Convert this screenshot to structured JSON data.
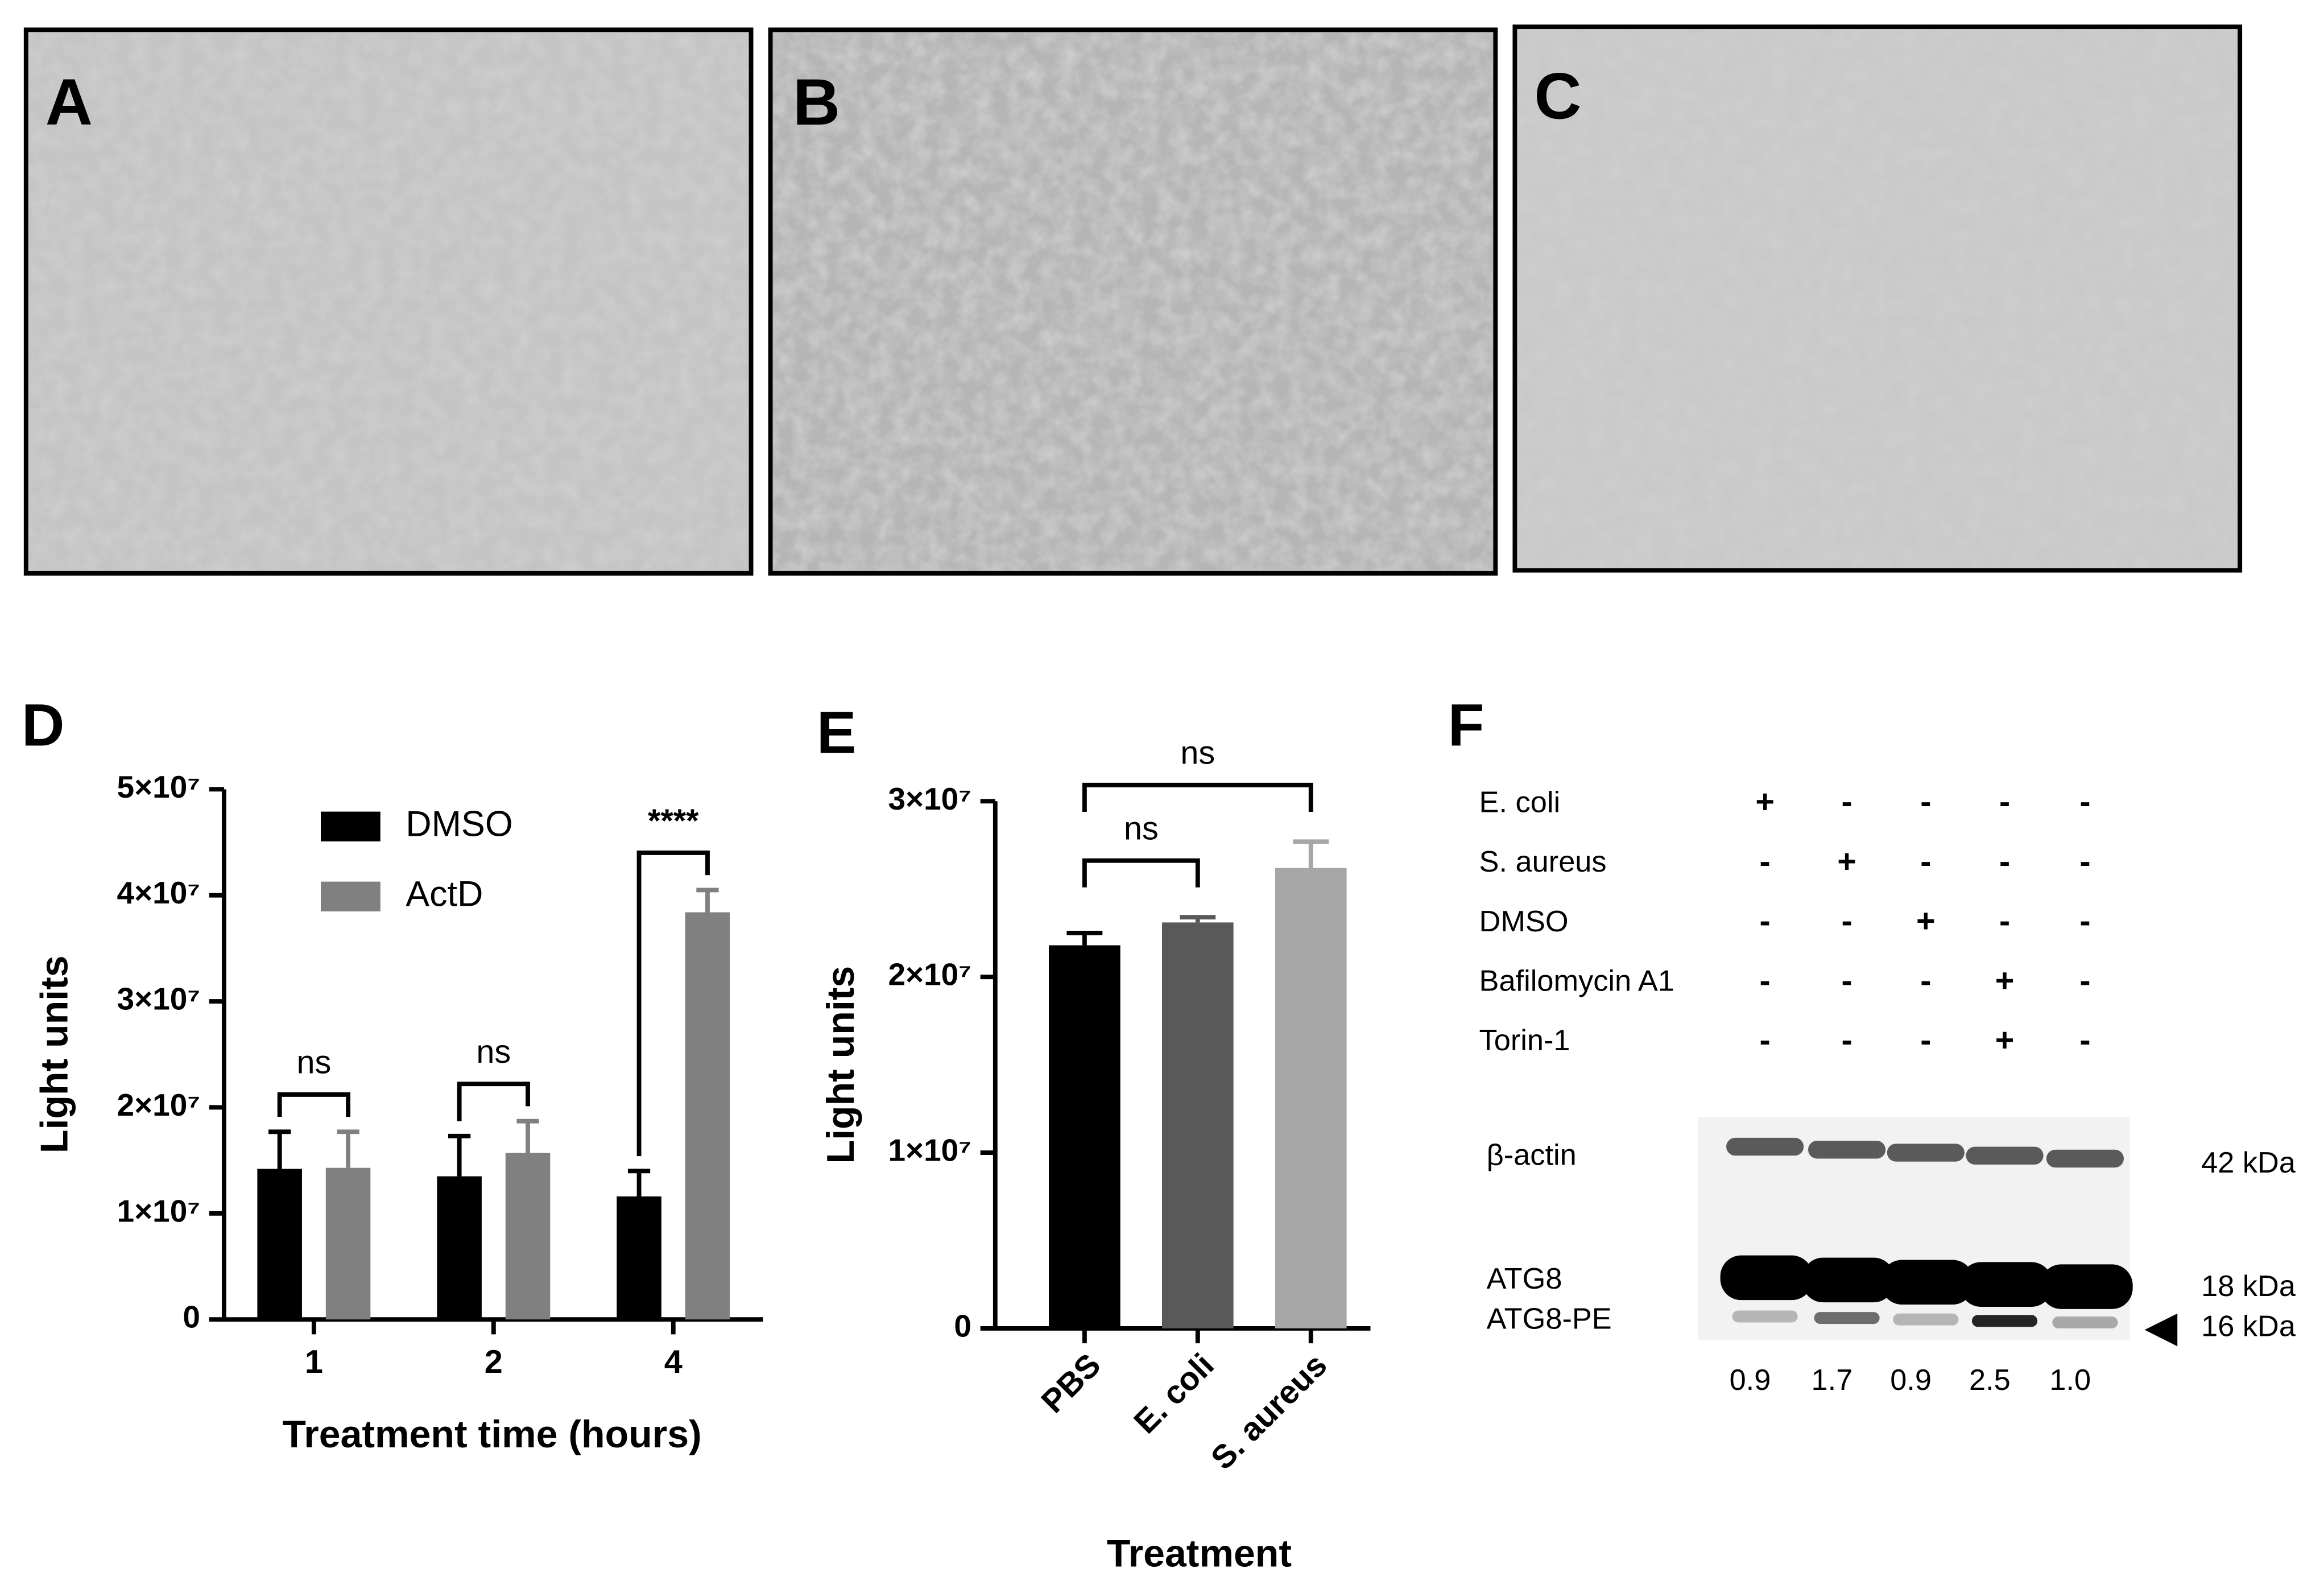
{
  "micrographs": [
    {
      "label": "A"
    },
    {
      "label": "B"
    },
    {
      "label": "C"
    }
  ],
  "chart_data": [
    {
      "type": "bar",
      "panel_label": "D",
      "y_label": "Light units",
      "x_label": "Treatment time (hours)",
      "categories": [
        "1",
        "2",
        "4"
      ],
      "series": [
        {
          "name": "DMSO",
          "color": "#000000",
          "values": [
            14200000,
            13500000,
            11600000
          ],
          "errors": [
            3500000,
            3800000,
            2400000
          ]
        },
        {
          "name": "ActD",
          "color": "#808080",
          "values": [
            14300000,
            15700000,
            38400000
          ],
          "errors": [
            3400000,
            3000000,
            2100000
          ]
        }
      ],
      "annotations": [
        "ns",
        "ns",
        "****"
      ],
      "ylim": [
        0,
        50000000
      ],
      "yticks": [
        0,
        {
          "value": 10000000,
          "label": "1×10⁷"
        },
        {
          "value": 20000000,
          "label": "2×10⁷"
        },
        {
          "value": 30000000,
          "label": "3×10⁷"
        },
        {
          "value": 40000000,
          "label": "4×10⁷"
        },
        {
          "value": 50000000,
          "label": "5×10⁷"
        }
      ]
    },
    {
      "type": "bar",
      "panel_label": "E",
      "y_label": "Light units",
      "x_label": "Treatment",
      "categories": [
        "PBS",
        "E. coli",
        "S. aureus"
      ],
      "values": [
        21800000,
        23100000,
        26200000
      ],
      "errors": [
        700000,
        300000,
        1500000
      ],
      "colors": [
        "#000000",
        "#595959",
        "#a6a6a6"
      ],
      "annotations": [
        "ns",
        "ns"
      ],
      "ylim": [
        0,
        30000000
      ],
      "yticks": [
        0,
        {
          "value": 10000000,
          "label": "1×10⁷"
        },
        {
          "value": 20000000,
          "label": "2×10⁷"
        },
        {
          "value": 30000000,
          "label": "3×10⁷"
        }
      ]
    }
  ],
  "blot": {
    "label": "F",
    "conditions": [
      {
        "name": "E. coli",
        "lanes": [
          "+",
          "-",
          "-",
          "-",
          "-"
        ]
      },
      {
        "name": "S. aureus",
        "lanes": [
          "-",
          "+",
          "-",
          "-",
          "-"
        ]
      },
      {
        "name": "DMSO",
        "lanes": [
          "-",
          "-",
          "+",
          "-",
          "-"
        ]
      },
      {
        "name": "Bafilomycin A1",
        "lanes": [
          "-",
          "-",
          "-",
          "+",
          "-"
        ]
      },
      {
        "name": "Torin-1",
        "lanes": [
          "-",
          "-",
          "-",
          "+",
          "-"
        ]
      }
    ],
    "bands": [
      {
        "name": "β-actin",
        "size": "42 kDa"
      },
      {
        "name": "ATG8",
        "size": "18 kDa"
      },
      {
        "name": "ATG8-PE",
        "size": "16 kDa"
      }
    ],
    "ratios": [
      "0.9",
      "1.7",
      "0.9",
      "2.5",
      "1.0"
    ]
  }
}
